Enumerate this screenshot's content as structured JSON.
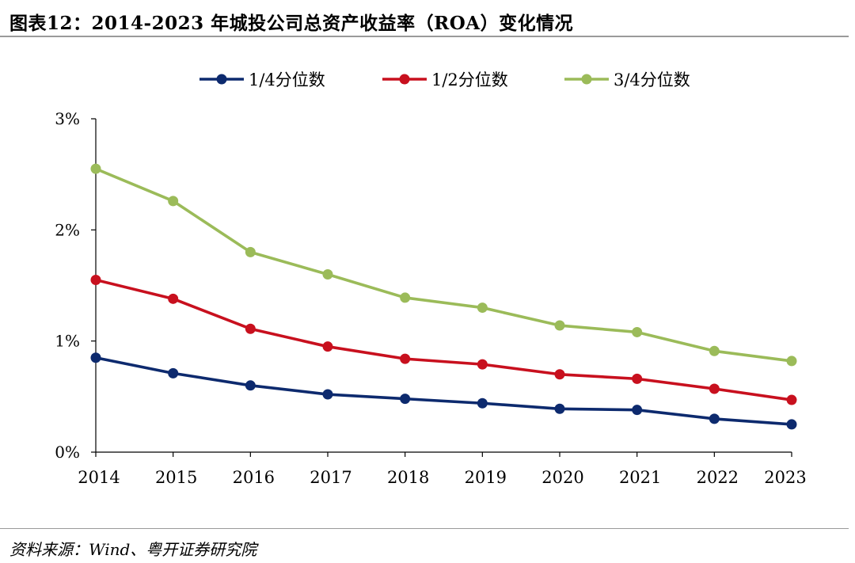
{
  "title": "图表12：2014-2023 年城投公司总资产收益率（ROA）变化情况",
  "source": "资料来源：Wind、粤开证券研究院",
  "chart_data": {
    "type": "line",
    "x": [
      "2014",
      "2015",
      "2016",
      "2017",
      "2018",
      "2019",
      "2020",
      "2021",
      "2022",
      "2023"
    ],
    "series": [
      {
        "name": "1/4分位数",
        "color": "#0d2a6e",
        "values": [
          0.85,
          0.71,
          0.6,
          0.52,
          0.48,
          0.44,
          0.39,
          0.38,
          0.3,
          0.25
        ]
      },
      {
        "name": "1/2分位数",
        "color": "#c8101e",
        "values": [
          1.55,
          1.38,
          1.11,
          0.95,
          0.84,
          0.79,
          0.7,
          0.66,
          0.57,
          0.47
        ]
      },
      {
        "name": "3/4分位数",
        "color": "#9bbb59",
        "values": [
          2.55,
          2.26,
          1.8,
          1.6,
          1.39,
          1.3,
          1.14,
          1.08,
          0.91,
          0.82
        ]
      }
    ],
    "ylim": [
      0,
      3
    ],
    "yticks": [
      "0%",
      "1%",
      "2%",
      "3%"
    ],
    "yunit": "%",
    "legend": "top",
    "grid": false
  }
}
